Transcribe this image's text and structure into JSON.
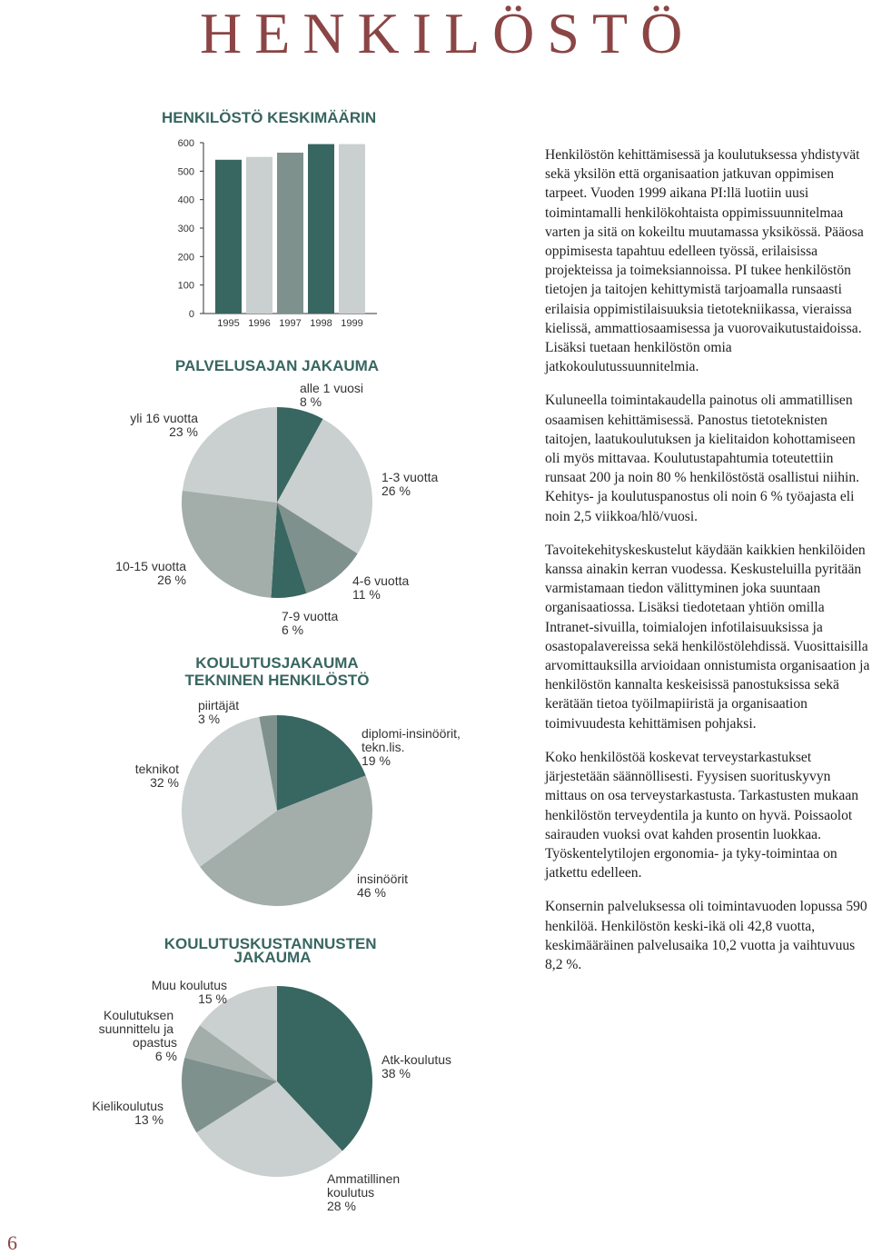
{
  "header": {
    "title": "HENKILÖSTÖ",
    "page_number": "6"
  },
  "chart_data": [
    {
      "type": "bar",
      "title": "HENKILÖSTÖ KESKIMÄÄRIN",
      "categories": [
        "1995",
        "1996",
        "1997",
        "1998",
        "1999"
      ],
      "values": [
        540,
        550,
        565,
        595,
        595
      ],
      "colors": [
        "#386660",
        "#c9d0cf",
        "#7f918d",
        "#386660",
        "#c9d0cf"
      ],
      "ylim": [
        0,
        600
      ],
      "yticks": [
        0,
        100,
        200,
        300,
        400,
        500,
        600
      ],
      "grid": false
    },
    {
      "type": "pie",
      "title": "PALVELUSAJAN JAKAUMA",
      "categories": [
        "alle 1 vuosi",
        "1-3 vuotta",
        "4-6 vuotta",
        "7-9 vuotta",
        "10-15 vuotta",
        "yli 16 vuotta"
      ],
      "values": [
        8,
        26,
        11,
        6,
        26,
        23
      ],
      "value_labels": [
        "8 %",
        "26 %",
        "11 %",
        "6 %",
        "26 %",
        "23 %"
      ],
      "colors": [
        "#386660",
        "#c9d0cf",
        "#7f918d",
        "#386660",
        "#a3adaa",
        "#c9d0cf"
      ]
    },
    {
      "type": "pie",
      "title": "KOULUTUSJAKAUMA",
      "subtitle": "TEKNINEN HENKILÖSTÖ",
      "categories": [
        "diplomi-insinöörit, tekn.lis.",
        "insinöörit",
        "teknikot",
        "piirtäjät"
      ],
      "values": [
        19,
        46,
        32,
        3
      ],
      "value_labels": [
        "19 %",
        "46 %",
        "32 %",
        "3 %"
      ],
      "colors": [
        "#386660",
        "#a3adaa",
        "#c9d0cf",
        "#7f918d"
      ]
    },
    {
      "type": "pie",
      "title": "KOULUTUSKUSTANNUSTEN JAKAUMA",
      "categories": [
        "Atk-koulutus",
        "Ammatillinen koulutus",
        "Kielikoulutus",
        "Koulutuksen suunnittelu ja opastus",
        "Muu koulutus"
      ],
      "values": [
        38,
        28,
        13,
        6,
        15
      ],
      "value_labels": [
        "38 %",
        "28 %",
        "13 %",
        "6 %",
        "15 %"
      ],
      "colors": [
        "#386660",
        "#c9d0cf",
        "#7f918d",
        "#a3adaa",
        "#c9d0cf"
      ]
    }
  ],
  "paragraphs": [
    "Henkilöstön kehittämisessä ja koulutuksessa yhdistyvät sekä yksilön että organisaation jatkuvan oppimisen tarpeet. Vuoden 1999 aikana PI:llä luotiin uusi toimintamalli henkilökohtaista oppimissuunnitelmaa varten ja sitä on kokeiltu muutamassa yksikössä. Pääosa oppimisesta tapahtuu edelleen työssä, erilaisissa projekteissa ja toimeksiannoissa. PI tukee henkilöstön tietojen ja taitojen kehittymistä tarjoamalla runsaasti erilaisia oppimistilaisuuksia tietotekniikassa, vieraissa kielissä, ammattiosaamisessa ja vuorovaikutustaidoissa. Lisäksi tuetaan henkilöstön omia jatkokoulutussuunnitelmia.",
    "Kuluneella toimintakaudella painotus oli ammatillisen osaamisen kehittämisessä. Panostus tietoteknisten taitojen, laatukoulutuksen ja kielitaidon kohottamiseen oli myös mittavaa. Koulutustapahtumia toteutettiin runsaat 200 ja noin 80 % henkilöstöstä osallistui niihin. Kehitys- ja koulutuspanostus oli noin 6 % työajasta eli noin 2,5 viikkoa/hlö/vuosi.",
    "Tavoitekehityskeskustelut käydään kaikkien henkilöiden kanssa ainakin kerran vuodessa. Keskusteluilla pyritään varmistamaan tiedon välittyminen joka suuntaan organisaatiossa. Lisäksi tiedotetaan yhtiön omilla Intranet-sivuilla, toimialojen infotilaisuuksissa ja osastopalavereissa sekä henkilöstölehdissä. Vuosittaisilla arvomittauksilla arvioidaan onnistumista organisaation ja henkilöstön kannalta keskeisissä panostuksissa sekä kerätään tietoa työilmapiiristä ja organisaation toimivuudesta kehittämisen pohjaksi.",
    "Koko henkilöstöä koskevat terveystarkastukset järjestetään säännöllisesti. Fyysisen suorituskyvyn mittaus on osa terveystarkastusta. Tarkastusten mukaan henkilöstön terveydentila ja kunto on hyvä. Poissaolot sairauden vuoksi ovat kahden prosentin luokkaa. Työskentelytilojen ergonomia- ja tyky-toimintaa on jatkettu edelleen.",
    "Konsernin palveluksessa oli toimintavuoden lopussa 590 henkilöä. Henkilöstön keski-ikä oli 42,8 vuotta, keskimääräinen palvelusaika 10,2 vuotta ja vaihtuvuus 8,2 %."
  ]
}
